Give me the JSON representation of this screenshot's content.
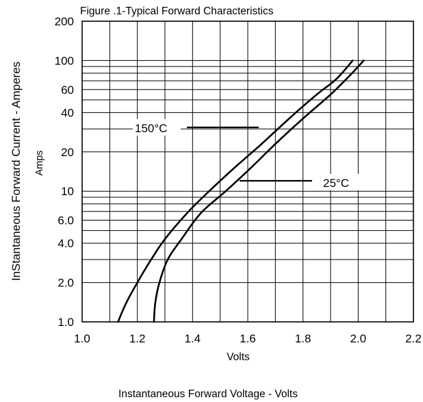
{
  "chart_data": {
    "type": "line",
    "title": "Figure .1-Typical Forward Characteristics",
    "xlabel": "Volts",
    "xlabel_secondary": "Instantaneous Forward Voltage - Volts",
    "ylabel": "InStantaneous Forward Current - Amperes",
    "ylabel_secondary": "Amps",
    "x_scale": "linear",
    "y_scale": "log",
    "xlim": [
      1.0,
      2.2
    ],
    "ylim": [
      1.0,
      200
    ],
    "grid": true,
    "x_ticks": [
      1.0,
      1.2,
      1.4,
      1.6,
      1.8,
      2.0,
      2.2
    ],
    "x_tick_labels": [
      "1.0",
      "1.2",
      "1.4",
      "1.6",
      "1.8",
      "2.0",
      "2.2"
    ],
    "y_ticks": [
      1,
      2,
      4,
      6,
      10,
      20,
      40,
      60,
      100,
      200
    ],
    "y_tick_labels": [
      "1.0",
      "2.0",
      "4.0",
      "6.0",
      "10",
      "20",
      "40",
      "60",
      "100",
      "200"
    ],
    "series": [
      {
        "name": "150°C",
        "x": [
          1.13,
          1.16,
          1.2,
          1.25,
          1.3,
          1.38,
          1.46,
          1.55,
          1.65,
          1.75,
          1.85,
          1.92,
          1.98
        ],
        "y": [
          1.0,
          1.4,
          2.0,
          3.0,
          4.3,
          6.8,
          10,
          15,
          23,
          36,
          55,
          72,
          100
        ]
      },
      {
        "name": "25°C",
        "x": [
          1.26,
          1.265,
          1.28,
          1.31,
          1.36,
          1.43,
          1.52,
          1.61,
          1.7,
          1.8,
          1.9,
          1.97,
          2.02
        ],
        "y": [
          1.0,
          1.4,
          2.0,
          3.0,
          4.3,
          6.8,
          10,
          15,
          23,
          36,
          55,
          77,
          100
        ]
      }
    ],
    "annotations": [
      {
        "text": "150°C",
        "series": "150°C"
      },
      {
        "text": "25°C",
        "series": "25°C"
      }
    ]
  }
}
